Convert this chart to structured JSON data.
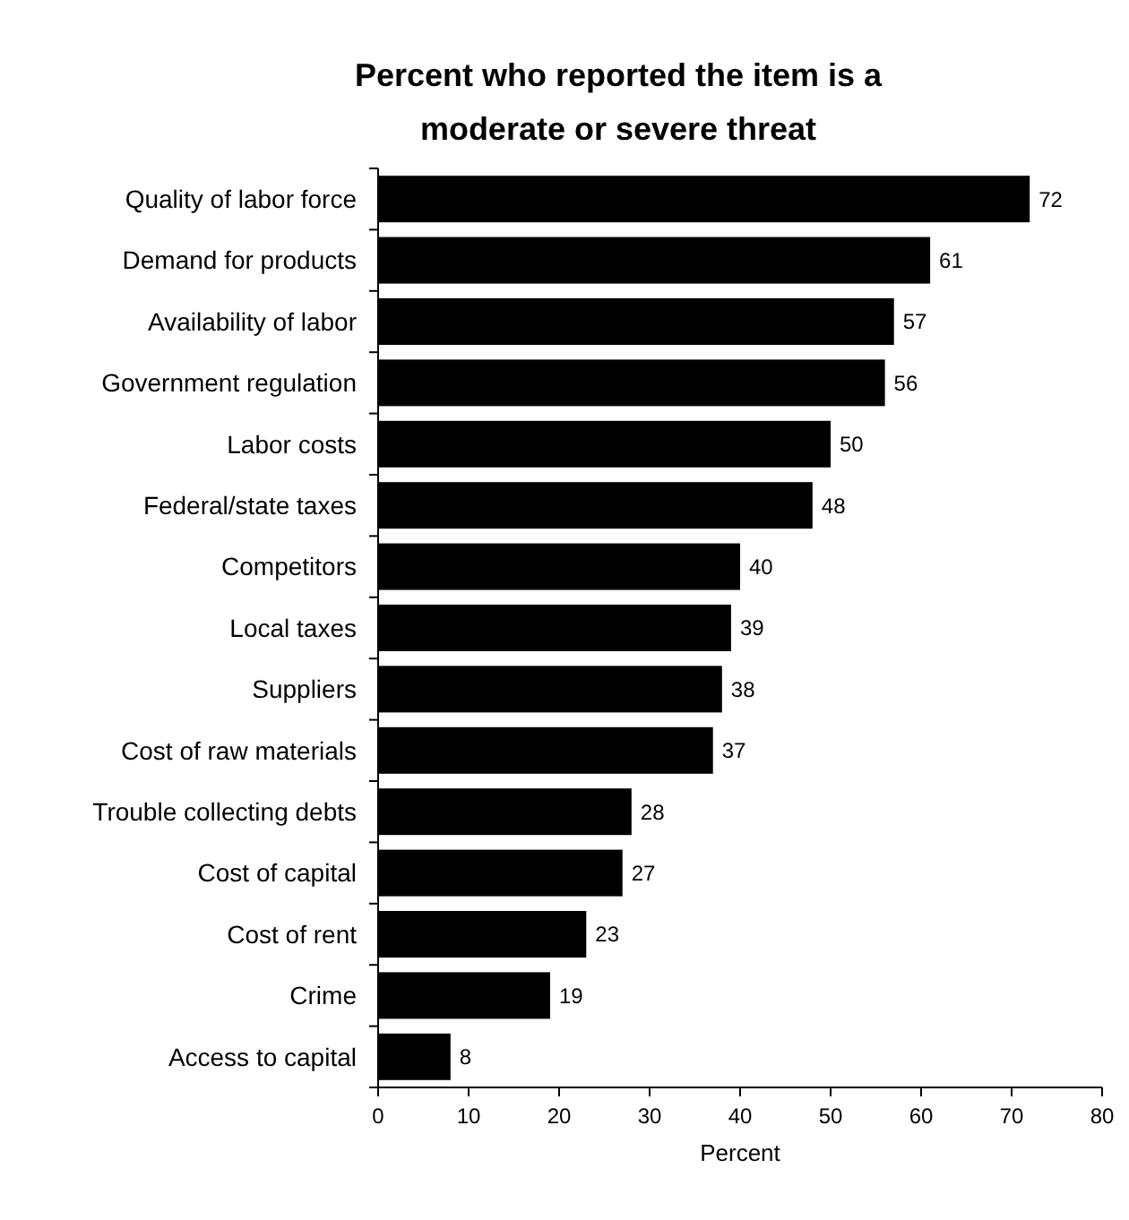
{
  "chart_data": {
    "type": "bar",
    "orientation": "horizontal",
    "title": "Percent who reported the item is a moderate or severe threat",
    "xlabel": "Percent",
    "categories": [
      "Quality of labor force",
      "Demand for products",
      "Availability of labor",
      "Government regulation",
      "Labor costs",
      "Federal/state taxes",
      "Competitors",
      "Local taxes",
      "Suppliers",
      "Cost of raw materials",
      "Trouble collecting debts",
      "Cost of capital",
      "Cost of rent",
      "Crime",
      "Access to capital"
    ],
    "values": [
      72,
      61,
      57,
      56,
      50,
      48,
      40,
      39,
      38,
      37,
      28,
      27,
      23,
      19,
      8
    ],
    "color": "#000000",
    "xlim": [
      0,
      80
    ],
    "xticks": [
      0,
      10,
      20,
      30,
      40,
      50,
      60,
      70,
      80
    ],
    "data_labels": true
  }
}
